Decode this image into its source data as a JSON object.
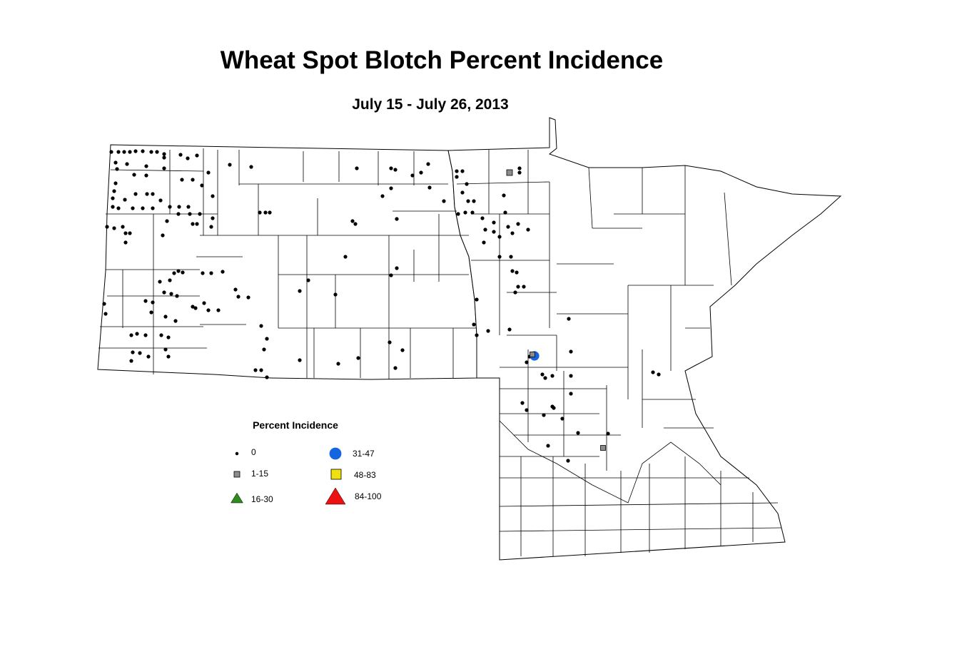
{
  "title": "Wheat Spot Blotch Percent Incidence",
  "subtitle": "July 15 - July 26, 2013",
  "legend": {
    "title": "Percent Incidence",
    "items": [
      {
        "label": "0",
        "shape": "dot",
        "color": "#000000"
      },
      {
        "label": "1-15",
        "shape": "square",
        "color": "#8c8c8c"
      },
      {
        "label": "16-30",
        "shape": "triangle",
        "color": "#2e8b1e"
      },
      {
        "label": "31-47",
        "shape": "circle",
        "color": "#1565e0"
      },
      {
        "label": "48-83",
        "shape": "square",
        "color": "#f0e010"
      },
      {
        "label": "84-100",
        "shape": "triangle",
        "color": "#ee1111"
      }
    ]
  }
}
